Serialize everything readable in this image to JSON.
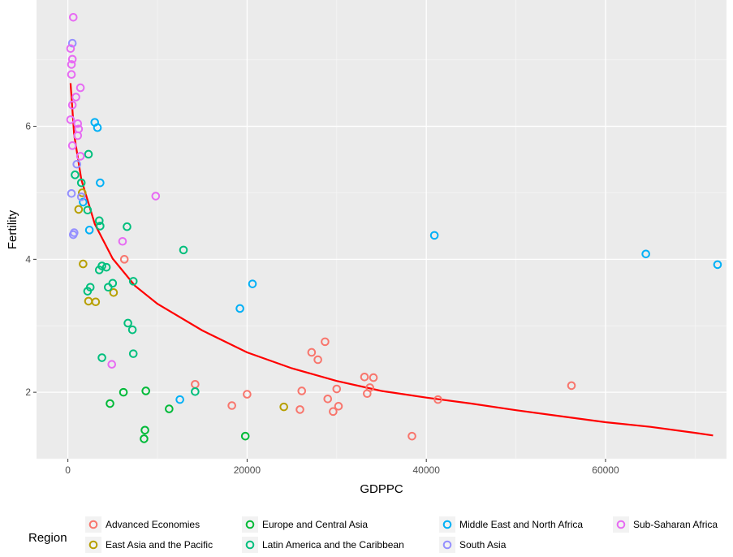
{
  "chart_data": {
    "type": "scatter",
    "title": "",
    "xlabel": "GDPPC",
    "ylabel": "Fertility",
    "xlim": [
      -3500,
      73500
    ],
    "ylim": [
      1.0,
      7.9
    ],
    "x_ticks": [
      0,
      20000,
      40000,
      60000
    ],
    "x_tick_labels": [
      "0",
      "20000",
      "40000",
      "60000"
    ],
    "y_ticks": [
      2,
      4,
      6
    ],
    "y_tick_labels": [
      "2",
      "4",
      "6"
    ],
    "grid": true,
    "panel_background": "#ebebeb",
    "legend": {
      "title": "Region",
      "position": "bottom"
    },
    "series": [
      {
        "name": "Advanced Economies",
        "color": "#f8766d",
        "points": [
          [
            6300,
            4.0
          ],
          [
            14200,
            2.12
          ],
          [
            18300,
            1.8
          ],
          [
            20000,
            1.97
          ],
          [
            25900,
            1.74
          ],
          [
            26100,
            2.02
          ],
          [
            27200,
            2.6
          ],
          [
            27900,
            2.49
          ],
          [
            28700,
            2.76
          ],
          [
            29000,
            1.9
          ],
          [
            29600,
            1.71
          ],
          [
            30000,
            2.05
          ],
          [
            30200,
            1.79
          ],
          [
            33100,
            2.23
          ],
          [
            33400,
            1.98
          ],
          [
            33700,
            2.07
          ],
          [
            34100,
            2.22
          ],
          [
            38400,
            1.34
          ],
          [
            41300,
            1.89
          ],
          [
            56200,
            2.1
          ]
        ]
      },
      {
        "name": "East Asia and the Pacific",
        "color": "#b79f00",
        "points": [
          [
            1600,
            5.0
          ],
          [
            1200,
            4.75
          ],
          [
            1700,
            3.93
          ],
          [
            2300,
            3.37
          ],
          [
            3100,
            3.36
          ],
          [
            5100,
            3.5
          ],
          [
            24100,
            1.78
          ]
        ]
      },
      {
        "name": "Europe and Central Asia",
        "color": "#00ba38",
        "points": [
          [
            4700,
            1.83
          ],
          [
            6200,
            2.0
          ],
          [
            8500,
            1.3
          ],
          [
            8600,
            1.43
          ],
          [
            8700,
            2.02
          ],
          [
            11300,
            1.75
          ],
          [
            19800,
            1.34
          ]
        ]
      },
      {
        "name": "Latin America and the Caribbean",
        "color": "#00bf7d",
        "points": [
          [
            800,
            5.27
          ],
          [
            1500,
            5.15
          ],
          [
            2300,
            5.58
          ],
          [
            2200,
            4.74
          ],
          [
            3500,
            4.58
          ],
          [
            3600,
            4.5
          ],
          [
            3500,
            3.84
          ],
          [
            3800,
            3.9
          ],
          [
            4300,
            3.88
          ],
          [
            4500,
            3.58
          ],
          [
            5000,
            3.64
          ],
          [
            7300,
            3.67
          ],
          [
            2200,
            3.52
          ],
          [
            2500,
            3.58
          ],
          [
            6600,
            4.49
          ],
          [
            6700,
            3.04
          ],
          [
            7200,
            2.94
          ],
          [
            7300,
            2.58
          ],
          [
            3800,
            2.52
          ],
          [
            12900,
            4.14
          ],
          [
            14200,
            2.01
          ]
        ]
      },
      {
        "name": "Middle East and North Africa",
        "color": "#00b0f6",
        "points": [
          [
            3000,
            6.06
          ],
          [
            3300,
            5.98
          ],
          [
            3600,
            5.15
          ],
          [
            1700,
            4.86
          ],
          [
            2400,
            4.44
          ],
          [
            12500,
            1.89
          ],
          [
            19200,
            3.26
          ],
          [
            20600,
            3.63
          ],
          [
            40900,
            4.36
          ],
          [
            64500,
            4.08
          ],
          [
            72500,
            3.92
          ]
        ]
      },
      {
        "name": "South Asia",
        "color": "#9590ff",
        "points": [
          [
            500,
            7.25
          ],
          [
            400,
            4.99
          ],
          [
            700,
            4.4
          ],
          [
            600,
            4.37
          ],
          [
            1000,
            5.43
          ],
          [
            1500,
            4.94
          ]
        ]
      },
      {
        "name": "Sub-Saharan Africa",
        "color": "#e76bf3",
        "points": [
          [
            600,
            7.64
          ],
          [
            300,
            7.17
          ],
          [
            500,
            7.01
          ],
          [
            400,
            6.93
          ],
          [
            400,
            6.78
          ],
          [
            1400,
            6.58
          ],
          [
            900,
            6.44
          ],
          [
            500,
            6.32
          ],
          [
            300,
            6.1
          ],
          [
            1100,
            6.04
          ],
          [
            1200,
            5.96
          ],
          [
            1100,
            5.86
          ],
          [
            500,
            5.71
          ],
          [
            1400,
            5.55
          ],
          [
            9800,
            4.95
          ],
          [
            6100,
            4.27
          ],
          [
            4900,
            2.42
          ]
        ]
      }
    ],
    "trend_line": {
      "color": "#ff0000",
      "points": [
        [
          300,
          6.65
        ],
        [
          700,
          5.87
        ],
        [
          1500,
          5.2
        ],
        [
          3000,
          4.53
        ],
        [
          5000,
          4.01
        ],
        [
          7500,
          3.6
        ],
        [
          10000,
          3.33
        ],
        [
          15000,
          2.93
        ],
        [
          20000,
          2.6
        ],
        [
          25000,
          2.36
        ],
        [
          30000,
          2.17
        ],
        [
          35000,
          2.02
        ],
        [
          40000,
          1.92
        ],
        [
          45000,
          1.83
        ],
        [
          50000,
          1.73
        ],
        [
          55000,
          1.64
        ],
        [
          60000,
          1.55
        ],
        [
          65000,
          1.48
        ],
        [
          70000,
          1.39
        ],
        [
          72000,
          1.35
        ]
      ]
    }
  }
}
